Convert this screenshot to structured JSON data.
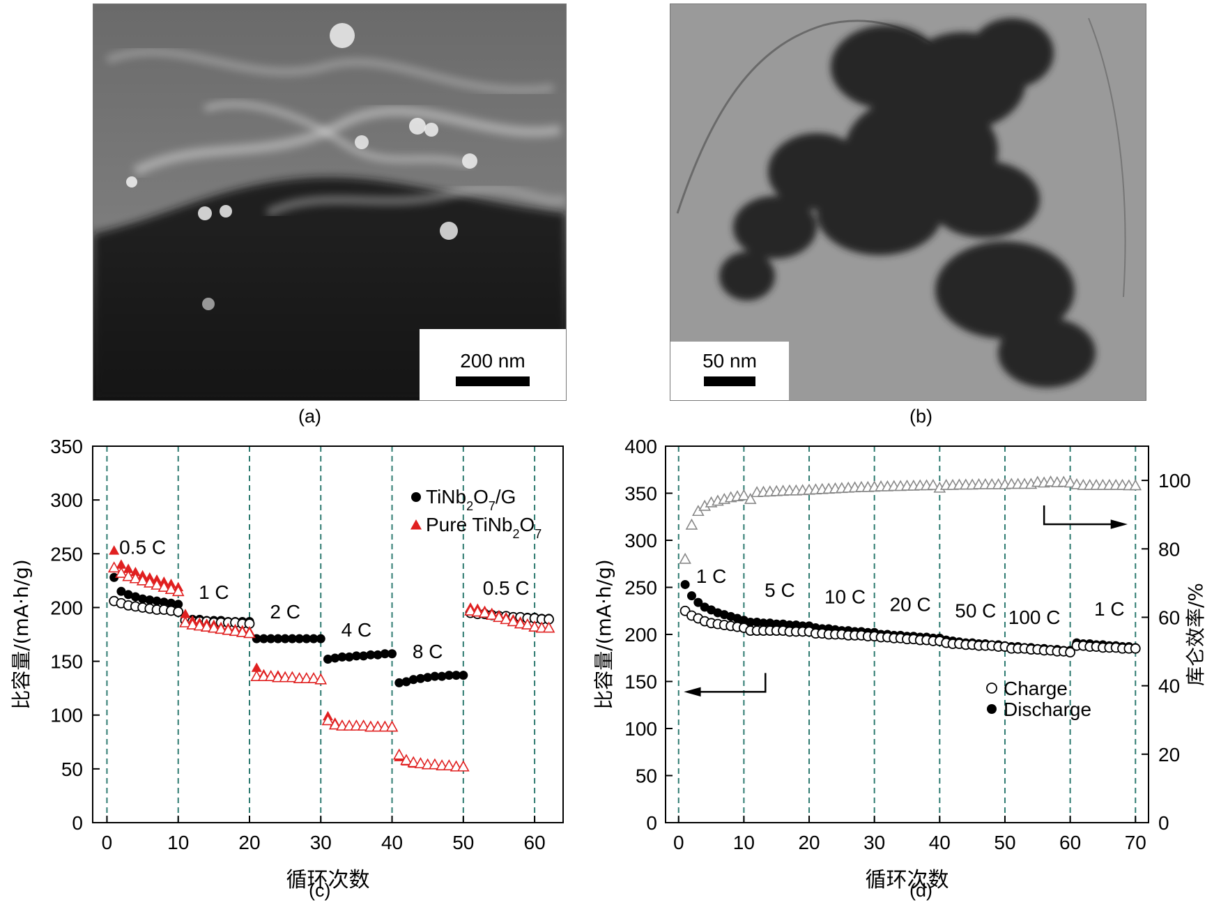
{
  "panels": {
    "a": {
      "label": "(a)",
      "scale_bar": "200 nm"
    },
    "b": {
      "label": "(b)",
      "scale_bar": "50 nm"
    },
    "c": {
      "label": "(c)"
    },
    "d": {
      "label": "(d)"
    }
  },
  "chart_data": [
    {
      "type": "scatter",
      "panel": "c",
      "xlabel": "循环次数",
      "ylabel": "比容量/(mA·h/g)",
      "xlim": [
        -2,
        64
      ],
      "ylim": [
        0,
        350
      ],
      "xticks": [
        0,
        10,
        20,
        30,
        40,
        50,
        60
      ],
      "yticks": [
        0,
        50,
        100,
        150,
        200,
        250,
        300,
        350
      ],
      "vlines": [
        0,
        10,
        20,
        30,
        40,
        50,
        60
      ],
      "rate_labels": [
        {
          "text": "0.5 C",
          "x": 5,
          "y": 250
        },
        {
          "text": "1 C",
          "x": 15,
          "y": 208
        },
        {
          "text": "2 C",
          "x": 25,
          "y": 190
        },
        {
          "text": "4 C",
          "x": 35,
          "y": 173
        },
        {
          "text": "8 C",
          "x": 45,
          "y": 153
        },
        {
          "text": "0.5 C",
          "x": 56,
          "y": 212
        }
      ],
      "legend": {
        "position": "top-right",
        "entries": [
          "TiNb2O7/G",
          "Pure TiNb2O7"
        ]
      },
      "series": [
        {
          "name": "TiNb2O7/G (discharge)",
          "marker": "filled-circle",
          "color": "#000000",
          "x": [
            1,
            2,
            3,
            4,
            5,
            6,
            7,
            8,
            9,
            10,
            11,
            12,
            13,
            14,
            15,
            16,
            17,
            18,
            19,
            20,
            21,
            22,
            23,
            24,
            25,
            26,
            27,
            28,
            29,
            30,
            31,
            32,
            33,
            34,
            35,
            36,
            37,
            38,
            39,
            40,
            41,
            42,
            43,
            44,
            45,
            46,
            47,
            48,
            49,
            50,
            51,
            52,
            53,
            54,
            55,
            56,
            57,
            58,
            59,
            60,
            61,
            62
          ],
          "y": [
            228,
            215,
            212,
            210,
            208,
            207,
            206,
            205,
            204,
            203,
            190,
            189,
            189,
            188,
            188,
            188,
            187,
            187,
            187,
            187,
            171,
            171,
            171,
            171,
            171,
            171,
            171,
            171,
            171,
            171,
            152,
            153,
            154,
            154,
            155,
            155,
            156,
            156,
            157,
            157,
            130,
            131,
            133,
            134,
            135,
            136,
            136,
            137,
            137,
            137,
            196,
            195,
            194,
            193,
            192,
            192,
            191,
            191,
            191,
            191,
            190,
            190
          ]
        },
        {
          "name": "TiNb2O7/G (charge)",
          "marker": "open-circle",
          "color": "#000000",
          "x": [
            1,
            2,
            3,
            4,
            5,
            6,
            7,
            8,
            9,
            10,
            11,
            12,
            13,
            14,
            15,
            16,
            17,
            18,
            19,
            20,
            51,
            52,
            53,
            54,
            55,
            56,
            57,
            58,
            59,
            60,
            61,
            62
          ],
          "y": [
            206,
            204,
            202,
            201,
            200,
            199,
            198,
            198,
            197,
            196,
            188,
            187,
            187,
            187,
            186,
            186,
            186,
            186,
            185,
            185,
            195,
            194,
            194,
            193,
            192,
            192,
            191,
            191,
            190,
            190,
            189,
            189
          ]
        },
        {
          "name": "Pure TiNb2O7 (discharge)",
          "marker": "filled-triangle",
          "color": "#e02020",
          "x": [
            1,
            2,
            3,
            4,
            5,
            6,
            7,
            8,
            9,
            10,
            11,
            12,
            13,
            14,
            15,
            16,
            17,
            18,
            19,
            20,
            21,
            22,
            23,
            24,
            25,
            26,
            27,
            28,
            29,
            30,
            31,
            32,
            33,
            34,
            35,
            36,
            37,
            38,
            39,
            40,
            41,
            42,
            43,
            44,
            45,
            46,
            47,
            48,
            49,
            50,
            51,
            52,
            53,
            54,
            55,
            56,
            57,
            58,
            59,
            60,
            61,
            62
          ],
          "y": [
            253,
            240,
            236,
            233,
            230,
            228,
            226,
            224,
            222,
            219,
            194,
            188,
            186,
            185,
            184,
            182,
            181,
            180,
            179,
            178,
            144,
            138,
            137,
            137,
            136,
            136,
            135,
            135,
            135,
            134,
            99,
            93,
            91,
            90,
            90,
            90,
            90,
            90,
            90,
            90,
            61,
            57,
            55,
            55,
            54,
            54,
            53,
            53,
            53,
            53,
            200,
            199,
            197,
            195,
            193,
            191,
            189,
            187,
            185,
            183,
            182,
            182
          ]
        },
        {
          "name": "Pure TiNb2O7 (charge)",
          "marker": "open-triangle",
          "color": "#e02020",
          "x": [
            1,
            2,
            3,
            4,
            5,
            6,
            7,
            8,
            9,
            10,
            11,
            12,
            13,
            14,
            15,
            16,
            17,
            18,
            19,
            20,
            21,
            22,
            23,
            24,
            25,
            26,
            27,
            28,
            29,
            30,
            31,
            32,
            33,
            34,
            35,
            36,
            37,
            38,
            39,
            40,
            41,
            42,
            43,
            44,
            45,
            46,
            47,
            48,
            49,
            50,
            51,
            52,
            53,
            54,
            55,
            56,
            57,
            58,
            59,
            60,
            61,
            62
          ],
          "y": [
            237,
            232,
            229,
            227,
            225,
            223,
            221,
            219,
            217,
            215,
            186,
            184,
            183,
            182,
            181,
            180,
            179,
            178,
            177,
            176,
            136,
            136,
            136,
            135,
            135,
            135,
            134,
            134,
            134,
            133,
            95,
            91,
            90,
            90,
            90,
            90,
            89,
            89,
            89,
            89,
            63,
            58,
            56,
            55,
            54,
            54,
            53,
            53,
            52,
            52,
            197,
            196,
            195,
            193,
            191,
            189,
            187,
            185,
            184,
            182,
            181,
            181
          ]
        }
      ]
    },
    {
      "type": "scatter",
      "panel": "d",
      "xlabel": "循环次数",
      "ylabel": "比容量/(mA·h/g)",
      "y2label": "库仑效率/%",
      "xlim": [
        -2,
        72
      ],
      "ylim": [
        0,
        400
      ],
      "y2lim": [
        0,
        110
      ],
      "xticks": [
        0,
        10,
        20,
        30,
        40,
        50,
        60,
        70
      ],
      "yticks": [
        0,
        50,
        100,
        150,
        200,
        250,
        300,
        350,
        400
      ],
      "y2ticks": [
        0,
        20,
        40,
        60,
        80,
        100
      ],
      "vlines": [
        0,
        10,
        20,
        30,
        40,
        50,
        60,
        70
      ],
      "rate_labels": [
        {
          "text": "1 C",
          "x": 5,
          "y": 255
        },
        {
          "text": "5 C",
          "x": 15.5,
          "y": 240
        },
        {
          "text": "10 C",
          "x": 25.5,
          "y": 233
        },
        {
          "text": "20 C",
          "x": 35.5,
          "y": 225
        },
        {
          "text": "50 C",
          "x": 45.5,
          "y": 218
        },
        {
          "text": "100 C",
          "x": 54.5,
          "y": 211
        },
        {
          "text": "1 C",
          "x": 66,
          "y": 220
        }
      ],
      "legend": {
        "position": "lower-right",
        "entries": [
          "Charge",
          "Discharge"
        ]
      },
      "series": [
        {
          "name": "Discharge",
          "marker": "filled-circle",
          "color": "#000000",
          "axis": "left",
          "x": [
            1,
            2,
            3,
            4,
            5,
            6,
            7,
            8,
            9,
            10,
            11,
            12,
            13,
            14,
            15,
            16,
            17,
            18,
            19,
            20,
            21,
            22,
            23,
            24,
            25,
            26,
            27,
            28,
            29,
            30,
            31,
            32,
            33,
            34,
            35,
            36,
            37,
            38,
            39,
            40,
            41,
            42,
            43,
            44,
            45,
            46,
            47,
            48,
            49,
            50,
            51,
            52,
            53,
            54,
            55,
            56,
            57,
            58,
            59,
            60,
            61,
            62,
            63,
            64,
            65,
            66,
            67,
            68,
            69,
            70
          ],
          "y": [
            253,
            241,
            234,
            229,
            226,
            223,
            221,
            219,
            217,
            215,
            213,
            213,
            212,
            212,
            211,
            211,
            210,
            210,
            209,
            209,
            207,
            206,
            206,
            205,
            204,
            204,
            203,
            203,
            202,
            202,
            200,
            200,
            199,
            199,
            198,
            198,
            197,
            197,
            196,
            196,
            194,
            193,
            192,
            191,
            191,
            190,
            190,
            189,
            189,
            188,
            187,
            187,
            186,
            186,
            185,
            185,
            184,
            184,
            183,
            183,
            191,
            190,
            190,
            189,
            189,
            188,
            188,
            187,
            187,
            186
          ]
        },
        {
          "name": "Charge",
          "marker": "open-circle",
          "color": "#000000",
          "axis": "left",
          "x": [
            1,
            2,
            3,
            4,
            5,
            6,
            7,
            8,
            9,
            10,
            11,
            12,
            13,
            14,
            15,
            16,
            17,
            18,
            19,
            20,
            21,
            22,
            23,
            24,
            25,
            26,
            27,
            28,
            29,
            30,
            31,
            32,
            33,
            34,
            35,
            36,
            37,
            38,
            39,
            40,
            41,
            42,
            43,
            44,
            45,
            46,
            47,
            48,
            49,
            50,
            51,
            52,
            53,
            54,
            55,
            56,
            57,
            58,
            59,
            60,
            61,
            62,
            63,
            64,
            65,
            66,
            67,
            68,
            69,
            70
          ],
          "y": [
            225,
            220,
            217,
            214,
            212,
            211,
            210,
            209,
            208,
            207,
            204,
            204,
            204,
            204,
            204,
            204,
            203,
            203,
            203,
            203,
            201,
            201,
            200,
            200,
            200,
            199,
            199,
            199,
            198,
            198,
            197,
            197,
            196,
            196,
            195,
            195,
            194,
            194,
            193,
            193,
            191,
            190,
            190,
            189,
            189,
            188,
            188,
            188,
            187,
            187,
            185,
            185,
            185,
            184,
            184,
            183,
            183,
            182,
            182,
            181,
            188,
            188,
            187,
            187,
            186,
            186,
            186,
            185,
            185,
            185
          ]
        },
        {
          "name": "Coulombic efficiency",
          "marker": "open-triangle",
          "color": "#888888",
          "axis": "right",
          "x": [
            1,
            2,
            3,
            4,
            5,
            6,
            7,
            8,
            9,
            10,
            11,
            12,
            13,
            14,
            15,
            16,
            17,
            18,
            19,
            20,
            21,
            22,
            23,
            24,
            25,
            26,
            27,
            28,
            29,
            30,
            31,
            32,
            33,
            34,
            35,
            36,
            37,
            38,
            39,
            40,
            41,
            42,
            43,
            44,
            45,
            46,
            47,
            48,
            49,
            50,
            51,
            52,
            53,
            54,
            55,
            56,
            57,
            58,
            59,
            60,
            61,
            62,
            63,
            64,
            65,
            66,
            67,
            68,
            69,
            70
          ],
          "y": [
            77,
            87,
            91,
            92.5,
            93.5,
            94,
            94.5,
            95,
            95.3,
            95.6,
            94.5,
            96.5,
            96.6,
            96.7,
            96.8,
            96.9,
            97,
            97,
            97.1,
            97.2,
            97.3,
            97.4,
            97.5,
            97.6,
            97.7,
            97.8,
            97.9,
            98,
            98,
            98.1,
            98.2,
            98.2,
            98.3,
            98.3,
            98.4,
            98.4,
            98.5,
            98.5,
            98.6,
            97.8,
            98.6,
            98.6,
            98.7,
            98.7,
            98.7,
            98.8,
            98.8,
            98.8,
            98.8,
            98.8,
            98.9,
            98.9,
            98.9,
            98.9,
            99.5,
            99.3,
            99.6,
            99.4,
            99.5,
            99.3,
            98.8,
            98.6,
            98.6,
            98.6,
            98.6,
            98.6,
            98.6,
            98.6,
            98.5,
            98.5
          ]
        }
      ],
      "arrows": [
        {
          "points_to": "right-axis"
        },
        {
          "points_to": "left-axis"
        }
      ]
    }
  ]
}
